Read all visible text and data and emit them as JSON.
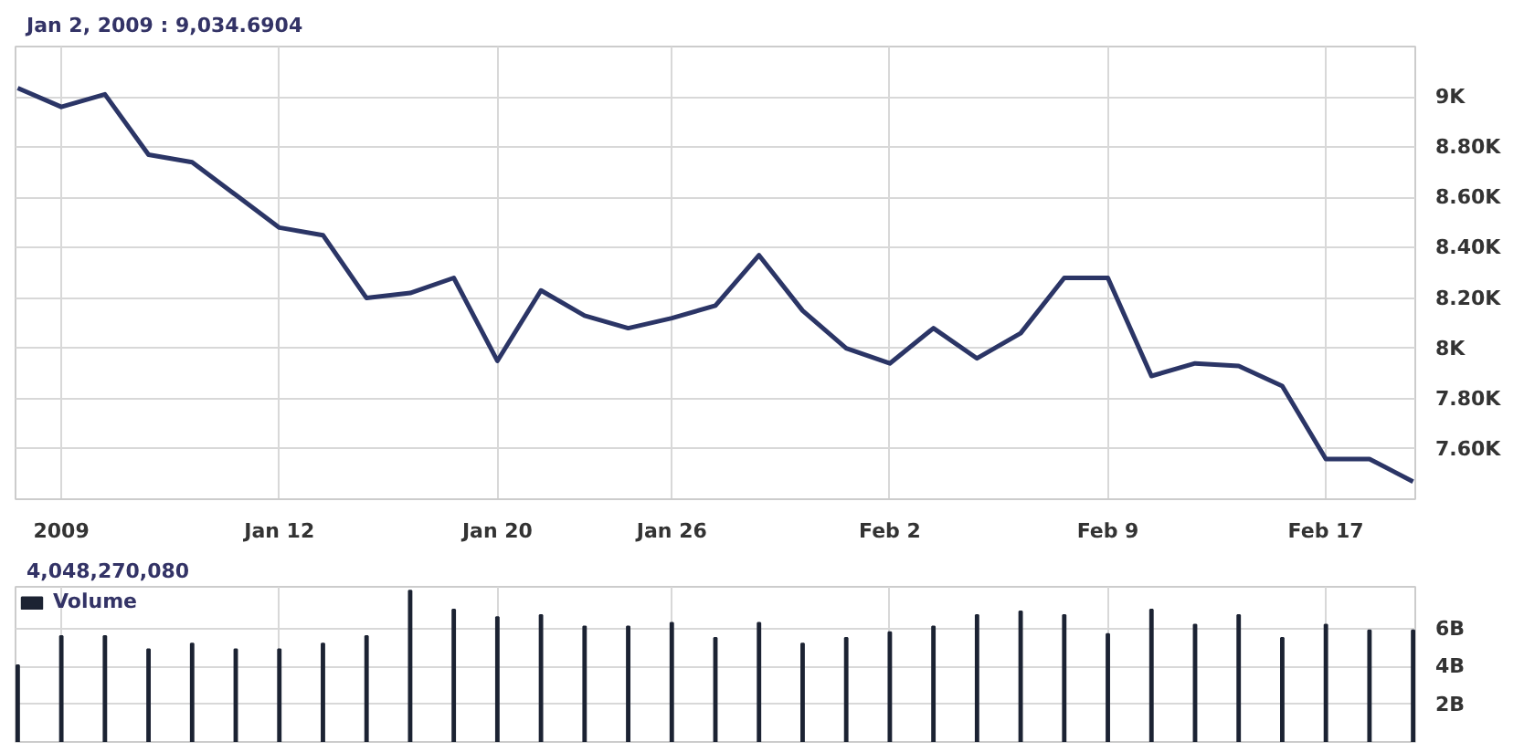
{
  "chart_data": [
    {
      "type": "line",
      "annotations": [
        "Jan 2, 2009 :",
        "9,034.6904"
      ],
      "categories": [
        null,
        "2009",
        null,
        null,
        null,
        null,
        "Jan 12",
        null,
        null,
        null,
        null,
        "Jan 20",
        null,
        null,
        null,
        "Jan 26",
        null,
        null,
        null,
        null,
        "Feb 2",
        null,
        null,
        null,
        null,
        "Feb 9",
        null,
        null,
        null,
        null,
        "Feb 17",
        null,
        null
      ],
      "series": [
        {
          "color": "#2b3566",
          "values": [
            9035,
            8960,
            9010,
            8770,
            8740,
            8610,
            8480,
            8450,
            8200,
            8220,
            8280,
            7950,
            8230,
            8130,
            8080,
            8120,
            8170,
            8370,
            8150,
            8000,
            7940,
            8080,
            7960,
            8060,
            8280,
            8280,
            7890,
            7940,
            7930,
            7850,
            7560,
            7560,
            7470
          ]
        }
      ],
      "ylim": [
        7400,
        9200
      ],
      "yticks": [
        {
          "value": 7600,
          "label": "7.60K"
        },
        {
          "value": 7800,
          "label": "7.80K"
        },
        {
          "value": 8000,
          "label": "8K"
        },
        {
          "value": 8200,
          "label": "8.20K"
        },
        {
          "value": 8400,
          "label": "8.40K"
        },
        {
          "value": 8600,
          "label": "8.60K"
        },
        {
          "value": 8800,
          "label": "8.80K"
        },
        {
          "value": 9000,
          "label": "9K"
        }
      ],
      "grid": true,
      "line_style": "solid"
    },
    {
      "type": "bar",
      "annotations": [
        "4,048,270,080"
      ],
      "legend": "top left",
      "categories": [
        null,
        null,
        null,
        null,
        null,
        null,
        null,
        null,
        null,
        null,
        null,
        null,
        null,
        null,
        null,
        null,
        null,
        null,
        null,
        null,
        null,
        null,
        null,
        null,
        null,
        null,
        null,
        null,
        null,
        null,
        null,
        null,
        null
      ],
      "series": [
        {
          "name": "Volume",
          "color": "#1c2333",
          "values": [
            4050000000,
            5600000000,
            5600000000,
            4900000000,
            5200000000,
            4900000000,
            4900000000,
            5200000000,
            5600000000,
            8000000000,
            7000000000,
            6600000000,
            6700000000,
            6100000000,
            6100000000,
            6300000000,
            5500000000,
            6300000000,
            5200000000,
            5500000000,
            5800000000,
            6100000000,
            6700000000,
            6900000000,
            6700000000,
            5700000000,
            7000000000,
            6200000000,
            6700000000,
            5500000000,
            6200000000,
            5900000000,
            5900000000
          ]
        }
      ],
      "ylim": [
        0,
        8200000000
      ],
      "yticks": [
        {
          "value": 2000000000,
          "label": "2B"
        },
        {
          "value": 4000000000,
          "label": "4B"
        },
        {
          "value": 6000000000,
          "label": "6B"
        }
      ],
      "grid": true
    }
  ]
}
